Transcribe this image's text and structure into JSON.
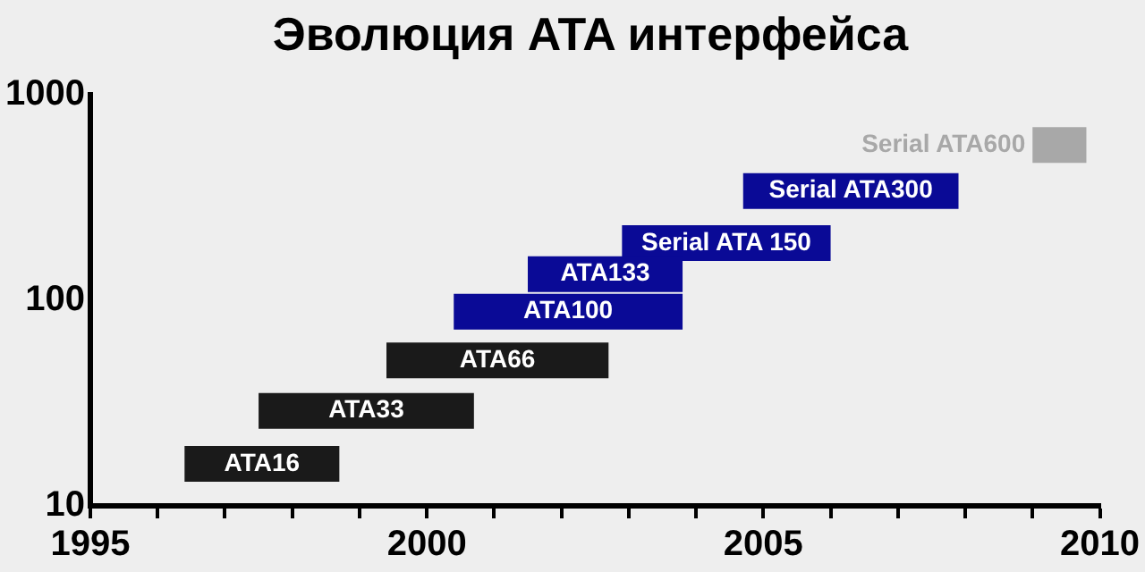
{
  "chart_data": {
    "type": "line",
    "title": "Эволюция ATA интерфейса",
    "series": [
      {
        "name": "ATA16",
        "color": "#1a1a1a",
        "x": [
          1996.4,
          1998.7
        ],
        "values": [
          16,
          16
        ]
      },
      {
        "name": "ATA33",
        "color": "#1a1a1a",
        "x": [
          1997.5,
          2000.7
        ],
        "values": [
          29,
          29
        ]
      },
      {
        "name": "ATA66",
        "color": "#1a1a1a",
        "x": [
          1999.4,
          2002.7
        ],
        "values": [
          51,
          51
        ]
      },
      {
        "name": "ATA100",
        "color": "#0a0a96",
        "x": [
          2000.4,
          2003.8
        ],
        "values": [
          88,
          88
        ]
      },
      {
        "name": "ATA133",
        "color": "#0a0a96",
        "x": [
          2001.5,
          2003.8
        ],
        "values": [
          134,
          134
        ]
      },
      {
        "name": "Serial ATA 150",
        "color": "#0a0a96",
        "x": [
          2002.9,
          2006.0
        ],
        "values": [
          190,
          190
        ]
      },
      {
        "name": "Serial ATA300",
        "color": "#0a0a96",
        "x": [
          2004.7,
          2007.9
        ],
        "values": [
          340,
          340
        ]
      },
      {
        "name": "Serial ATA600",
        "color": "#a8a8a8",
        "x": [
          2009.0,
          2009.8
        ],
        "values": [
          570,
          570
        ]
      }
    ],
    "xlim": [
      1995,
      2010
    ],
    "xticks": [
      1995,
      {
        "value": 1996,
        "label": null
      },
      {
        "value": 1997,
        "label": null
      },
      {
        "value": 1998,
        "label": null
      },
      {
        "value": 1999,
        "label": null
      },
      2000,
      {
        "value": 2001,
        "label": null
      },
      {
        "value": 2002,
        "label": null
      },
      {
        "value": 2003,
        "label": null
      },
      {
        "value": 2004,
        "label": null
      },
      2005,
      {
        "value": 2006,
        "label": null
      },
      {
        "value": 2007,
        "label": null
      },
      {
        "value": 2008,
        "label": null
      },
      {
        "value": 2009,
        "label": null
      },
      2010
    ],
    "ylim": [
      10,
      1000
    ],
    "yticks": [
      10,
      100,
      1000
    ],
    "log": true,
    "grid": false,
    "legend": false,
    "marker": "none",
    "line_style": "solid"
  }
}
